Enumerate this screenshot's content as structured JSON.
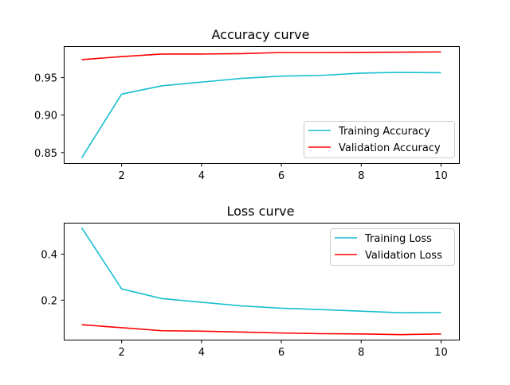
{
  "chart_data": [
    {
      "type": "line",
      "title": "Accuracy curve",
      "xlabel": "",
      "ylabel": "",
      "xlim": [
        0.55,
        10.45
      ],
      "ylim": [
        0.836,
        0.992
      ],
      "x_ticks": [
        2,
        4,
        6,
        8,
        10
      ],
      "y_ticks": [
        0.85,
        0.9,
        0.95
      ],
      "y_tick_labels": [
        "0.85",
        "0.90",
        "0.95"
      ],
      "grid": false,
      "legend_position": "lower-right",
      "x": [
        1,
        2,
        3,
        4,
        5,
        6,
        7,
        8,
        9,
        10
      ],
      "series": [
        {
          "name": "Training Accuracy",
          "color": "#17becf",
          "values": [
            0.843,
            0.928,
            0.939,
            0.944,
            0.949,
            0.952,
            0.953,
            0.956,
            0.957,
            0.9565
          ]
        },
        {
          "name": "Validation Accuracy",
          "color": "#ff0000",
          "values": [
            0.974,
            0.978,
            0.9815,
            0.9815,
            0.982,
            0.9835,
            0.9835,
            0.9837,
            0.984,
            0.9843
          ]
        }
      ]
    },
    {
      "type": "line",
      "title": "Loss curve",
      "xlabel": "",
      "ylabel": "",
      "xlim": [
        0.55,
        10.45
      ],
      "ylim": [
        0.028,
        0.537
      ],
      "x_ticks": [
        2,
        4,
        6,
        8,
        10
      ],
      "y_ticks": [
        0.2,
        0.4
      ],
      "y_tick_labels": [
        "0.2",
        "0.4"
      ],
      "grid": false,
      "legend_position": "top-right",
      "x": [
        1,
        2,
        3,
        4,
        5,
        6,
        7,
        8,
        9,
        10
      ],
      "series": [
        {
          "name": "Training Loss",
          "color": "#17becf",
          "values": [
            0.515,
            0.249,
            0.207,
            0.191,
            0.175,
            0.165,
            0.159,
            0.152,
            0.145,
            0.146
          ]
        },
        {
          "name": "Validation Loss",
          "color": "#ff0000",
          "values": [
            0.093,
            0.08,
            0.067,
            0.065,
            0.061,
            0.057,
            0.054,
            0.053,
            0.05,
            0.053
          ]
        }
      ]
    }
  ]
}
